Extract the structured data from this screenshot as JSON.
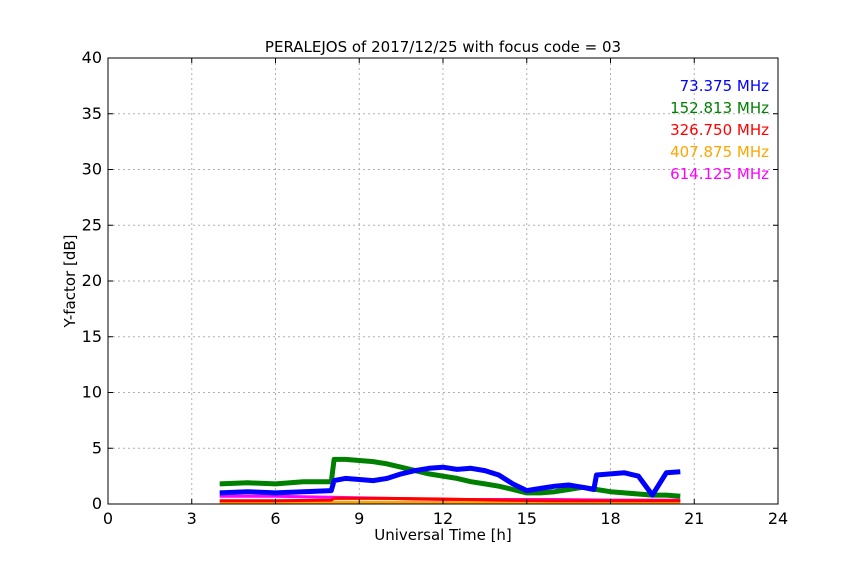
{
  "chart_data": {
    "type": "line",
    "title": "PERALEJOS of 2017/12/25 with focus code = 03",
    "xlabel": "Universal Time [h]",
    "ylabel": "Y-factor [dB]",
    "xlim": [
      0,
      24
    ],
    "ylim": [
      0,
      40
    ],
    "xticks": [
      0,
      3,
      6,
      9,
      12,
      15,
      18,
      21,
      24
    ],
    "yticks": [
      0,
      5,
      10,
      15,
      20,
      25,
      30,
      35,
      40
    ],
    "grid": true,
    "legend_position": "top-right",
    "series": [
      {
        "name": "73.375 MHz",
        "color": "#0000ff",
        "x": [
          4.0,
          5.0,
          6.0,
          7.0,
          8.0,
          8.1,
          8.5,
          9.0,
          9.5,
          10.0,
          10.5,
          11.0,
          11.5,
          12.0,
          12.5,
          13.0,
          13.5,
          14.0,
          14.5,
          15.0,
          15.5,
          16.0,
          16.5,
          17.0,
          17.4,
          17.5,
          18.0,
          18.5,
          19.0,
          19.5,
          20.0,
          20.5
        ],
        "y": [
          1.0,
          1.1,
          1.0,
          1.1,
          1.2,
          2.1,
          2.3,
          2.2,
          2.1,
          2.3,
          2.7,
          3.0,
          3.2,
          3.3,
          3.1,
          3.2,
          3.0,
          2.6,
          1.8,
          1.2,
          1.4,
          1.6,
          1.7,
          1.5,
          1.3,
          2.6,
          2.7,
          2.8,
          2.5,
          0.8,
          2.8,
          2.9
        ]
      },
      {
        "name": "152.813 MHz",
        "color": "#008000",
        "x": [
          4.0,
          5.0,
          6.0,
          7.0,
          8.0,
          8.1,
          8.5,
          9.0,
          9.5,
          10.0,
          10.5,
          11.0,
          11.5,
          12.0,
          12.5,
          13.0,
          13.5,
          14.0,
          14.5,
          15.0,
          15.5,
          16.0,
          16.5,
          17.0,
          17.5,
          18.0,
          18.5,
          19.0,
          19.5,
          20.0,
          20.5
        ],
        "y": [
          1.8,
          1.9,
          1.8,
          2.0,
          2.0,
          4.0,
          4.0,
          3.9,
          3.8,
          3.6,
          3.3,
          3.0,
          2.7,
          2.5,
          2.3,
          2.0,
          1.8,
          1.6,
          1.3,
          1.0,
          1.0,
          1.1,
          1.3,
          1.5,
          1.3,
          1.1,
          1.0,
          0.9,
          0.8,
          0.8,
          0.7
        ]
      },
      {
        "name": "326.750 MHz",
        "color": "#ff0000",
        "x": [
          4.0,
          6.0,
          8.0,
          8.1,
          10.0,
          12.0,
          14.0,
          16.0,
          18.0,
          20.5
        ],
        "y": [
          0.3,
          0.3,
          0.35,
          0.5,
          0.5,
          0.45,
          0.35,
          0.3,
          0.3,
          0.3
        ]
      },
      {
        "name": "407.875 MHz",
        "color": "#ffa500",
        "x": [
          4.0,
          8.0,
          12.0,
          16.0,
          20.5
        ],
        "y": [
          0.15,
          0.15,
          0.15,
          0.15,
          0.15
        ]
      },
      {
        "name": "614.125 MHz",
        "color": "#ff00ff",
        "x": [
          4.0,
          6.0,
          8.0,
          10.0,
          12.0,
          14.0,
          16.0,
          18.0,
          20.5
        ],
        "y": [
          0.7,
          0.7,
          0.6,
          0.5,
          0.4,
          0.4,
          0.4,
          0.35,
          0.35
        ]
      }
    ]
  }
}
